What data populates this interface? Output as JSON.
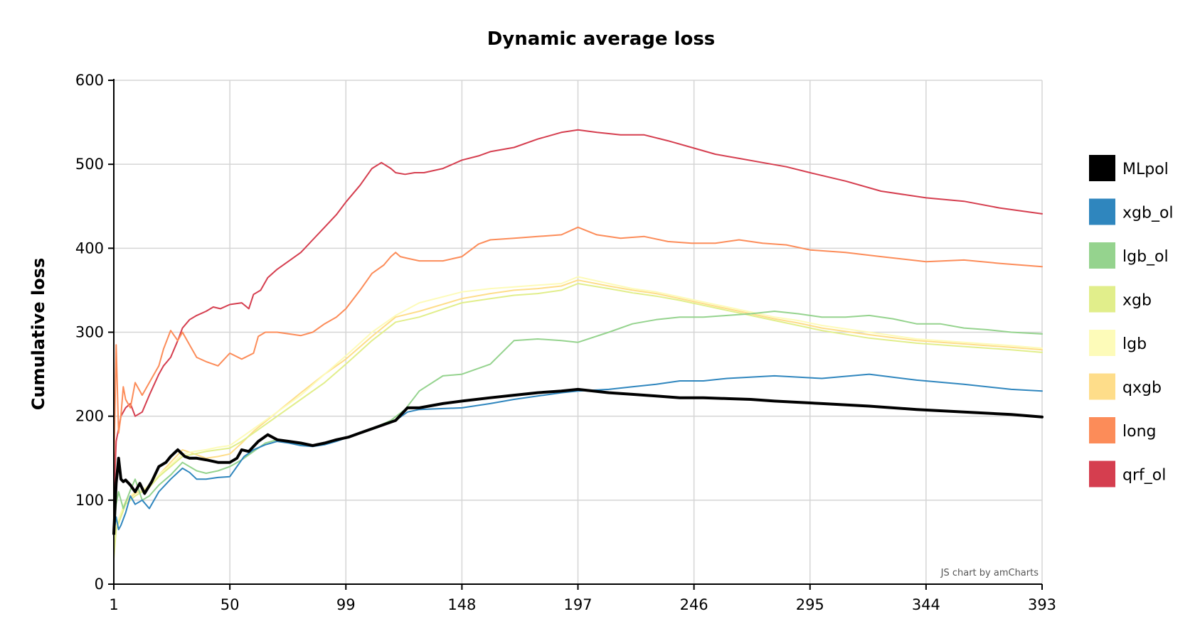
{
  "chart_data": {
    "type": "line",
    "title": "Dynamic average loss",
    "xlabel": "",
    "ylabel": "Cumulative loss",
    "credit": "JS chart by amCharts",
    "xlim": [
      1,
      393
    ],
    "ylim": [
      0,
      600
    ],
    "x_ticks": [
      1,
      50,
      99,
      148,
      197,
      246,
      295,
      344,
      393
    ],
    "y_ticks": [
      0,
      100,
      200,
      300,
      400,
      500,
      600
    ],
    "grid": true,
    "legend_position": "right",
    "series": [
      {
        "name": "MLpol",
        "color": "#000000",
        "width": 4,
        "x": [
          1,
          2,
          3,
          4,
          5,
          6,
          8,
          10,
          12,
          14,
          17,
          20,
          23,
          25,
          28,
          31,
          33,
          36,
          40,
          45,
          50,
          53,
          55,
          58,
          62,
          66,
          70,
          75,
          80,
          85,
          90,
          95,
          100,
          105,
          110,
          115,
          120,
          125,
          130,
          140,
          148,
          160,
          170,
          180,
          190,
          197,
          210,
          220,
          230,
          240,
          250,
          260,
          270,
          280,
          300,
          320,
          340,
          360,
          380,
          393
        ],
        "y": [
          60,
          120,
          150,
          125,
          122,
          124,
          118,
          110,
          120,
          108,
          122,
          140,
          145,
          152,
          160,
          152,
          150,
          150,
          148,
          145,
          145,
          150,
          160,
          158,
          170,
          178,
          172,
          170,
          168,
          165,
          168,
          172,
          175,
          180,
          185,
          190,
          195,
          210,
          210,
          215,
          218,
          222,
          225,
          228,
          230,
          232,
          228,
          226,
          224,
          222,
          222,
          221,
          220,
          218,
          215,
          212,
          208,
          205,
          202,
          199
        ]
      },
      {
        "name": "xgb_ol",
        "color": "#2f86be",
        "width": 2,
        "x": [
          1,
          2,
          3,
          4,
          6,
          8,
          10,
          13,
          16,
          20,
          25,
          30,
          33,
          36,
          40,
          45,
          50,
          53,
          56,
          60,
          65,
          70,
          75,
          80,
          85,
          90,
          95,
          100,
          110,
          115,
          120,
          125,
          130,
          148,
          160,
          170,
          180,
          190,
          197,
          210,
          220,
          230,
          240,
          250,
          260,
          280,
          300,
          320,
          340,
          360,
          380,
          393
        ],
        "y": [
          60,
          80,
          65,
          70,
          85,
          105,
          95,
          100,
          90,
          110,
          125,
          138,
          133,
          125,
          125,
          127,
          128,
          140,
          152,
          160,
          166,
          170,
          168,
          165,
          164,
          166,
          170,
          175,
          185,
          190,
          195,
          205,
          208,
          210,
          215,
          220,
          224,
          228,
          230,
          232,
          235,
          238,
          242,
          242,
          245,
          248,
          245,
          250,
          243,
          238,
          232,
          230
        ]
      },
      {
        "name": "lgb_ol",
        "color": "#95d38e",
        "width": 2,
        "x": [
          1,
          2,
          3,
          5,
          8,
          10,
          13,
          16,
          20,
          25,
          30,
          33,
          36,
          40,
          45,
          50,
          55,
          60,
          65,
          70,
          75,
          80,
          85,
          90,
          95,
          100,
          110,
          118,
          124,
          130,
          140,
          148,
          160,
          170,
          180,
          190,
          197,
          210,
          220,
          230,
          240,
          250,
          260,
          270,
          280,
          290,
          300,
          310,
          320,
          330,
          340,
          350,
          360,
          370,
          380,
          393
        ],
        "y": [
          60,
          95,
          110,
          90,
          112,
          125,
          100,
          105,
          118,
          130,
          145,
          140,
          135,
          132,
          135,
          140,
          148,
          158,
          168,
          172,
          170,
          166,
          165,
          168,
          172,
          175,
          185,
          195,
          208,
          230,
          248,
          250,
          262,
          290,
          292,
          290,
          288,
          300,
          310,
          315,
          318,
          318,
          320,
          322,
          325,
          322,
          318,
          318,
          320,
          316,
          310,
          310,
          305,
          303,
          300,
          298
        ]
      },
      {
        "name": "xgb",
        "color": "#e1ee8b",
        "width": 2,
        "x": [
          1,
          2,
          4,
          6,
          10,
          13,
          16,
          20,
          25,
          30,
          35,
          40,
          45,
          50,
          55,
          60,
          70,
          80,
          90,
          99,
          110,
          120,
          130,
          148,
          160,
          170,
          180,
          190,
          197,
          210,
          220,
          230,
          240,
          250,
          260,
          270,
          280,
          290,
          300,
          320,
          340,
          360,
          380,
          393
        ],
        "y": [
          30,
          65,
          80,
          95,
          105,
          110,
          115,
          128,
          140,
          152,
          155,
          158,
          160,
          162,
          170,
          180,
          200,
          220,
          240,
          262,
          290,
          312,
          318,
          335,
          340,
          344,
          346,
          350,
          358,
          352,
          347,
          343,
          338,
          332,
          326,
          320,
          314,
          308,
          302,
          293,
          287,
          283,
          279,
          276
        ]
      },
      {
        "name": "lgb",
        "color": "#fdfbb9",
        "width": 2,
        "x": [
          1,
          2,
          4,
          6,
          10,
          13,
          16,
          20,
          25,
          30,
          35,
          40,
          45,
          50,
          55,
          60,
          70,
          80,
          90,
          99,
          110,
          120,
          130,
          148,
          160,
          170,
          180,
          190,
          197,
          210,
          220,
          230,
          240,
          250,
          260,
          270,
          280,
          290,
          300,
          320,
          340,
          360,
          380,
          393
        ],
        "y": [
          40,
          70,
          85,
          100,
          110,
          112,
          118,
          130,
          142,
          155,
          158,
          160,
          163,
          165,
          175,
          185,
          205,
          225,
          250,
          272,
          300,
          320,
          335,
          348,
          352,
          354,
          356,
          358,
          366,
          358,
          352,
          348,
          342,
          336,
          330,
          324,
          318,
          314,
          308,
          300,
          292,
          288,
          284,
          281
        ]
      },
      {
        "name": "qxgb",
        "color": "#fedd8a",
        "width": 2,
        "x": [
          1,
          2,
          4,
          6,
          10,
          13,
          16,
          20,
          25,
          30,
          35,
          40,
          45,
          50,
          55,
          60,
          70,
          80,
          90,
          99,
          110,
          120,
          130,
          148,
          160,
          170,
          180,
          190,
          197,
          210,
          220,
          230,
          240,
          250,
          260,
          270,
          280,
          290,
          300,
          320,
          340,
          360,
          380,
          393
        ],
        "y": [
          35,
          68,
          82,
          98,
          108,
          112,
          116,
          130,
          145,
          160,
          155,
          150,
          152,
          155,
          168,
          182,
          205,
          228,
          250,
          268,
          295,
          318,
          325,
          340,
          346,
          350,
          352,
          355,
          362,
          355,
          350,
          346,
          340,
          334,
          328,
          322,
          316,
          311,
          305,
          297,
          290,
          286,
          282,
          279
        ]
      },
      {
        "name": "long",
        "color": "#fc8c59",
        "width": 2,
        "x": [
          1,
          2,
          3,
          4,
          5,
          6,
          8,
          10,
          13,
          16,
          20,
          22,
          25,
          28,
          30,
          33,
          36,
          40,
          45,
          50,
          55,
          60,
          62,
          65,
          70,
          75,
          80,
          85,
          90,
          95,
          99,
          105,
          110,
          115,
          118,
          120,
          122,
          125,
          130,
          140,
          148,
          155,
          160,
          170,
          180,
          190,
          197,
          205,
          215,
          225,
          235,
          245,
          255,
          265,
          275,
          285,
          295,
          310,
          325,
          344,
          360,
          375,
          393
        ],
        "y": [
          130,
          285,
          180,
          200,
          235,
          220,
          210,
          240,
          225,
          240,
          260,
          280,
          302,
          290,
          300,
          285,
          270,
          265,
          260,
          275,
          268,
          275,
          295,
          300,
          300,
          298,
          296,
          300,
          310,
          318,
          328,
          350,
          370,
          380,
          390,
          395,
          390,
          388,
          385,
          385,
          390,
          405,
          410,
          412,
          414,
          416,
          425,
          416,
          412,
          414,
          408,
          406,
          406,
          410,
          406,
          404,
          398,
          395,
          390,
          384,
          386,
          382,
          378
        ]
      },
      {
        "name": "qrf_ol",
        "color": "#d53e4f",
        "width": 2,
        "x": [
          1,
          2,
          3,
          4,
          6,
          8,
          10,
          13,
          16,
          20,
          22,
          25,
          28,
          30,
          33,
          36,
          40,
          43,
          46,
          50,
          55,
          58,
          60,
          63,
          66,
          70,
          75,
          80,
          85,
          90,
          95,
          99,
          105,
          110,
          114,
          118,
          120,
          124,
          128,
          132,
          140,
          148,
          155,
          160,
          170,
          180,
          190,
          197,
          205,
          215,
          225,
          235,
          245,
          255,
          265,
          275,
          285,
          295,
          310,
          325,
          344,
          360,
          375,
          393
        ],
        "y": [
          100,
          170,
          185,
          200,
          210,
          215,
          200,
          205,
          225,
          250,
          260,
          270,
          290,
          305,
          315,
          320,
          325,
          330,
          328,
          333,
          335,
          328,
          345,
          350,
          365,
          375,
          385,
          395,
          410,
          425,
          440,
          455,
          475,
          495,
          502,
          495,
          490,
          488,
          490,
          490,
          495,
          505,
          510,
          515,
          520,
          530,
          538,
          541,
          538,
          535,
          535,
          528,
          520,
          512,
          507,
          502,
          497,
          490,
          480,
          468,
          460,
          456,
          448,
          441
        ]
      }
    ]
  }
}
